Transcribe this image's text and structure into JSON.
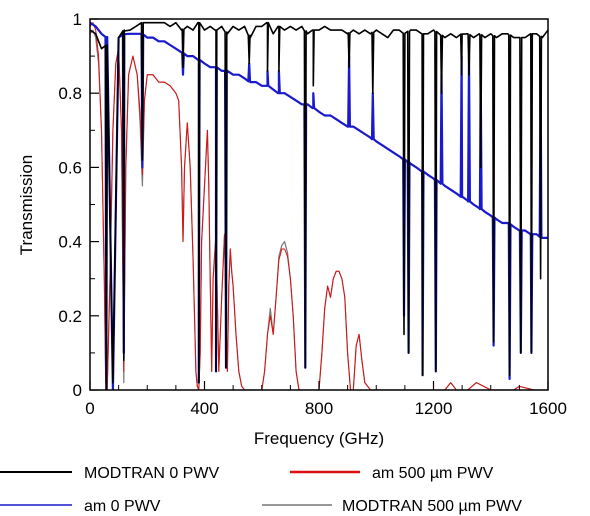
{
  "chart_data": {
    "type": "line",
    "xlabel": "Frequency (GHz)",
    "ylabel": "Transmission",
    "xlim": [
      0,
      1600
    ],
    "ylim": [
      0,
      1
    ],
    "xticks": [
      0,
      400,
      800,
      1200,
      1600
    ],
    "xtick_labels": [
      "0",
      "400",
      "800",
      "1200",
      "1600"
    ],
    "yticks": [
      0,
      0.2,
      0.4,
      0.6,
      0.8,
      1
    ],
    "ytick_labels": [
      "0",
      "0.2",
      "0.4",
      "0.6",
      "0.8",
      "1"
    ],
    "grid": false,
    "legend_position": "bottom",
    "series": [
      {
        "name": "MODTRAN 0 PWV",
        "color": "#000000",
        "x": [
          0,
          20,
          40,
          60,
          80,
          100,
          120,
          140,
          160,
          180,
          200,
          220,
          240,
          260,
          280,
          300,
          320,
          340,
          360,
          380,
          400,
          420,
          440,
          460,
          480,
          500,
          520,
          540,
          560,
          580,
          600,
          620,
          640,
          660,
          680,
          700,
          720,
          740,
          760,
          780,
          800,
          820,
          840,
          860,
          880,
          900,
          920,
          940,
          960,
          980,
          1000,
          1020,
          1040,
          1060,
          1080,
          1100,
          1120,
          1140,
          1160,
          1180,
          1200,
          1220,
          1240,
          1260,
          1280,
          1300,
          1320,
          1340,
          1360,
          1380,
          1400,
          1420,
          1440,
          1460,
          1480,
          1500,
          1520,
          1540,
          1560,
          1580,
          1600
        ],
        "y": [
          0.97,
          0.96,
          0.92,
          0.93,
          0.02,
          0.95,
          0.97,
          0.97,
          0.98,
          0.99,
          0.99,
          0.99,
          0.99,
          0.99,
          0.98,
          0.99,
          0.97,
          0.98,
          0.97,
          0.99,
          0.97,
          0.98,
          0.97,
          0.98,
          0.96,
          0.98,
          0.97,
          0.98,
          0.95,
          0.98,
          0.98,
          0.99,
          0.96,
          0.98,
          0.97,
          0.98,
          0.97,
          0.98,
          0.96,
          0.97,
          0.97,
          0.98,
          0.97,
          0.97,
          0.97,
          0.96,
          0.97,
          0.96,
          0.97,
          0.96,
          0.97,
          0.96,
          0.95,
          0.97,
          0.97,
          0.96,
          0.97,
          0.97,
          0.96,
          0.96,
          0.97,
          0.96,
          0.95,
          0.96,
          0.95,
          0.96,
          0.96,
          0.95,
          0.96,
          0.95,
          0.96,
          0.95,
          0.96,
          0.96,
          0.95,
          0.95,
          0.95,
          0.96,
          0.96,
          0.95,
          0.97
        ],
        "dips": [
          [
            57,
            0.0
          ],
          [
            118,
            0.08
          ],
          [
            183,
            0.62
          ],
          [
            325,
            0.87
          ],
          [
            380,
            0.02
          ],
          [
            440,
            0.05
          ],
          [
            475,
            0.06
          ],
          [
            556,
            0.88
          ],
          [
            620,
            0.86
          ],
          [
            660,
            0.86
          ],
          [
            752,
            0.06
          ],
          [
            780,
            0.82
          ],
          [
            905,
            0.87
          ],
          [
            988,
            0.8
          ],
          [
            1097,
            0.15
          ],
          [
            1113,
            0.1
          ],
          [
            1162,
            0.04
          ],
          [
            1208,
            0.05
          ],
          [
            1228,
            0.8
          ],
          [
            1298,
            0.85
          ],
          [
            1324,
            0.85
          ],
          [
            1365,
            0.6
          ],
          [
            1410,
            0.13
          ],
          [
            1466,
            0.04
          ],
          [
            1505,
            0.1
          ],
          [
            1542,
            0.1
          ],
          [
            1574,
            0.3
          ]
        ]
      },
      {
        "name": "am 0 PWV",
        "color": "#1a1acc",
        "x": [
          0,
          20,
          40,
          60,
          80,
          100,
          120,
          140,
          160,
          180,
          200,
          220,
          240,
          260,
          280,
          300,
          320,
          340,
          360,
          380,
          400,
          420,
          440,
          460,
          480,
          500,
          520,
          540,
          560,
          580,
          600,
          620,
          640,
          660,
          680,
          700,
          720,
          740,
          760,
          780,
          800,
          820,
          840,
          860,
          880,
          900,
          920,
          940,
          960,
          980,
          1000,
          1020,
          1040,
          1060,
          1080,
          1100,
          1120,
          1140,
          1160,
          1180,
          1200,
          1220,
          1240,
          1260,
          1280,
          1300,
          1320,
          1340,
          1360,
          1380,
          1400,
          1420,
          1440,
          1460,
          1480,
          1500,
          1520,
          1540,
          1560,
          1580,
          1600
        ],
        "y": [
          0.99,
          0.98,
          0.96,
          0.95,
          0.0,
          0.95,
          0.96,
          0.96,
          0.96,
          0.96,
          0.95,
          0.95,
          0.94,
          0.94,
          0.93,
          0.92,
          0.91,
          0.9,
          0.9,
          0.89,
          0.88,
          0.87,
          0.87,
          0.86,
          0.86,
          0.85,
          0.85,
          0.84,
          0.83,
          0.83,
          0.82,
          0.82,
          0.81,
          0.8,
          0.8,
          0.79,
          0.78,
          0.77,
          0.77,
          0.76,
          0.75,
          0.74,
          0.74,
          0.73,
          0.72,
          0.71,
          0.71,
          0.7,
          0.69,
          0.68,
          0.67,
          0.66,
          0.65,
          0.64,
          0.63,
          0.62,
          0.61,
          0.6,
          0.59,
          0.58,
          0.57,
          0.56,
          0.55,
          0.54,
          0.53,
          0.52,
          0.51,
          0.5,
          0.49,
          0.48,
          0.47,
          0.46,
          0.45,
          0.45,
          0.44,
          0.43,
          0.43,
          0.42,
          0.42,
          0.41,
          0.41
        ],
        "dips": [
          [
            57,
            0.0
          ],
          [
            118,
            0.1
          ],
          [
            183,
            0.6
          ],
          [
            325,
            0.85
          ],
          [
            380,
            0.02
          ],
          [
            440,
            0.05
          ],
          [
            475,
            0.06
          ],
          [
            556,
            0.88
          ],
          [
            620,
            0.86
          ],
          [
            660,
            0.86
          ],
          [
            752,
            0.06
          ],
          [
            780,
            0.8
          ],
          [
            905,
            0.9
          ],
          [
            988,
            0.8
          ],
          [
            1097,
            0.2
          ],
          [
            1113,
            0.1
          ],
          [
            1162,
            0.04
          ],
          [
            1208,
            0.05
          ],
          [
            1228,
            0.85
          ],
          [
            1298,
            0.9
          ],
          [
            1324,
            0.9
          ],
          [
            1365,
            0.85
          ],
          [
            1410,
            0.12
          ],
          [
            1466,
            0.03
          ],
          [
            1505,
            0.1
          ],
          [
            1542,
            0.1
          ],
          [
            1574,
            0.85
          ]
        ]
      },
      {
        "name": "am 500 µm PWV",
        "color": "#dd1111",
        "x": [
          0,
          10,
          20,
          30,
          40,
          50,
          55,
          60,
          70,
          80,
          90,
          100,
          110,
          118,
          125,
          135,
          150,
          165,
          175,
          183,
          190,
          200,
          220,
          240,
          260,
          280,
          300,
          310,
          320,
          325,
          330,
          340,
          350,
          360,
          370,
          375,
          380,
          385,
          390,
          400,
          410,
          415,
          420,
          425,
          430,
          440,
          450,
          460,
          470,
          475,
          480,
          485,
          490,
          495,
          500,
          510,
          520,
          530,
          540,
          550,
          560,
          570,
          580,
          600,
          610,
          620,
          630,
          640,
          650,
          660,
          670,
          680,
          690,
          700,
          710,
          720,
          730,
          740,
          750,
          760,
          770,
          780,
          790,
          800,
          810,
          820,
          830,
          840,
          850,
          860,
          870,
          880,
          890,
          900,
          910,
          920,
          930,
          940,
          950,
          960,
          980,
          1000,
          1050,
          1100,
          1150,
          1200,
          1240,
          1260,
          1280,
          1300,
          1320,
          1350,
          1400,
          1450,
          1480,
          1500,
          1550,
          1600
        ],
        "y": [
          0.98,
          0.99,
          0.97,
          0.9,
          0.7,
          0.3,
          0.02,
          0.0,
          0.3,
          0.7,
          0.88,
          0.92,
          0.7,
          0.05,
          0.6,
          0.85,
          0.9,
          0.85,
          0.75,
          0.58,
          0.78,
          0.85,
          0.85,
          0.83,
          0.83,
          0.82,
          0.8,
          0.78,
          0.6,
          0.4,
          0.6,
          0.72,
          0.6,
          0.35,
          0.05,
          0.01,
          0.0,
          0.1,
          0.4,
          0.55,
          0.7,
          0.55,
          0.3,
          0.05,
          0.3,
          0.42,
          0.05,
          0.25,
          0.42,
          0.2,
          0.05,
          0.28,
          0.38,
          0.32,
          0.28,
          0.15,
          0.05,
          0.01,
          0.0,
          0.0,
          0.0,
          0.0,
          0.0,
          0.0,
          0.05,
          0.15,
          0.2,
          0.15,
          0.25,
          0.35,
          0.38,
          0.38,
          0.36,
          0.3,
          0.2,
          0.05,
          0.0,
          0.0,
          0.0,
          0.0,
          0.0,
          0.0,
          0.0,
          0.0,
          0.1,
          0.22,
          0.28,
          0.25,
          0.3,
          0.32,
          0.32,
          0.3,
          0.25,
          0.1,
          0.0,
          0.0,
          0.12,
          0.15,
          0.08,
          0.02,
          0.0,
          0.0,
          0.0,
          0.0,
          0.0,
          0.0,
          0.0,
          0.02,
          0.0,
          0.0,
          0.0,
          0.02,
          0.0,
          0.0,
          0.0,
          0.01,
          0.0,
          0.0
        ]
      },
      {
        "name": "MODTRAN 500 µm PWV",
        "color": "#777777",
        "x": [
          0,
          10,
          20,
          30,
          40,
          50,
          55,
          60,
          70,
          80,
          90,
          100,
          110,
          118,
          125,
          135,
          150,
          165,
          175,
          183,
          190,
          200,
          220,
          240,
          260,
          280,
          300,
          310,
          320,
          325,
          330,
          340,
          350,
          360,
          370,
          375,
          380,
          385,
          390,
          400,
          410,
          415,
          420,
          425,
          430,
          440,
          450,
          460,
          470,
          475,
          480,
          485,
          490,
          495,
          500,
          510,
          520,
          530,
          540,
          550,
          560,
          570,
          580,
          600,
          610,
          620,
          630,
          640,
          650,
          660,
          670,
          680,
          690,
          700,
          710,
          720,
          730,
          740,
          750,
          760,
          770,
          780,
          790,
          800,
          810,
          820,
          830,
          840,
          850,
          860,
          870,
          880,
          890,
          900,
          910,
          920,
          930,
          940,
          950,
          960,
          980,
          1000,
          1050,
          1100,
          1150,
          1200,
          1240,
          1260,
          1280,
          1300,
          1320,
          1350,
          1400,
          1450,
          1480,
          1500,
          1550,
          1600
        ],
        "y": [
          0.96,
          0.97,
          0.95,
          0.88,
          0.7,
          0.3,
          0.02,
          0.0,
          0.3,
          0.7,
          0.88,
          0.92,
          0.7,
          0.02,
          0.6,
          0.85,
          0.9,
          0.85,
          0.72,
          0.55,
          0.78,
          0.85,
          0.85,
          0.83,
          0.83,
          0.82,
          0.8,
          0.78,
          0.6,
          0.4,
          0.6,
          0.72,
          0.6,
          0.35,
          0.05,
          0.01,
          0.0,
          0.1,
          0.4,
          0.55,
          0.7,
          0.55,
          0.3,
          0.05,
          0.3,
          0.42,
          0.05,
          0.25,
          0.42,
          0.2,
          0.05,
          0.28,
          0.38,
          0.32,
          0.28,
          0.15,
          0.05,
          0.01,
          0.0,
          0.0,
          0.0,
          0.0,
          0.0,
          0.0,
          0.05,
          0.15,
          0.22,
          0.15,
          0.25,
          0.36,
          0.39,
          0.4,
          0.37,
          0.3,
          0.2,
          0.05,
          0.0,
          0.0,
          0.0,
          0.0,
          0.0,
          0.0,
          0.0,
          0.0,
          0.1,
          0.22,
          0.28,
          0.25,
          0.3,
          0.32,
          0.32,
          0.3,
          0.25,
          0.1,
          0.0,
          0.0,
          0.12,
          0.15,
          0.08,
          0.02,
          0.0,
          0.0,
          0.0,
          0.0,
          0.0,
          0.0,
          0.0,
          0.02,
          0.0,
          0.0,
          0.0,
          0.02,
          0.0,
          0.0,
          0.0,
          0.01,
          0.0,
          0.0
        ]
      }
    ]
  },
  "legend": {
    "items": [
      {
        "label": "MODTRAN 0 PWV",
        "color": "#000000"
      },
      {
        "label": "am 500 µm PWV",
        "color": "#dd1111"
      },
      {
        "label": "am 0 PWV",
        "color": "#1a1acc"
      },
      {
        "label": "MODTRAN 500 µm PWV",
        "color": "#777777"
      }
    ]
  }
}
